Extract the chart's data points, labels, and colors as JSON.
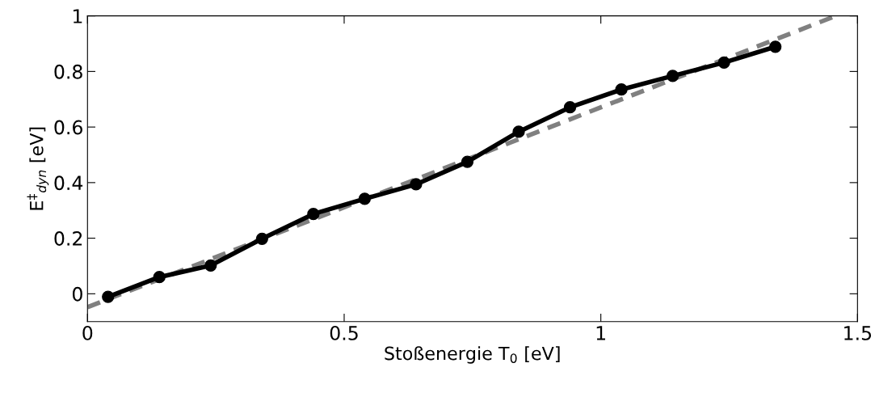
{
  "chart_data": {
    "type": "line",
    "xlabel": "Stoßenergie T$_{0}$ [eV]",
    "ylabel": "E$^{‡}$$_{dyn}$ [eV]",
    "xlim": [
      0,
      1.5
    ],
    "xticks": [
      0,
      0.5,
      1,
      1.5
    ],
    "ylim": [
      -0.1,
      1
    ],
    "yticks": [
      0,
      0.2,
      0.4,
      0.6,
      0.8,
      1
    ],
    "grid": false,
    "legend": false,
    "series": [
      {
        "color": "#000000",
        "marker": "circle",
        "line_style": "solid",
        "x": [
          0.04,
          0.14,
          0.24,
          0.34,
          0.44,
          0.54,
          0.64,
          0.74,
          0.84,
          0.94,
          1.04,
          1.14,
          1.24,
          1.34
        ],
        "values": [
          -0.011,
          0.06,
          0.102,
          0.198,
          0.287,
          0.342,
          0.394,
          0.475,
          0.583,
          0.671,
          0.735,
          0.784,
          0.832,
          0.889
        ]
      },
      {
        "color": "#808080",
        "marker": "none",
        "line_style": "dashed",
        "x": [
          0,
          1.458
        ],
        "values": [
          -0.048,
          1.0
        ]
      }
    ]
  }
}
